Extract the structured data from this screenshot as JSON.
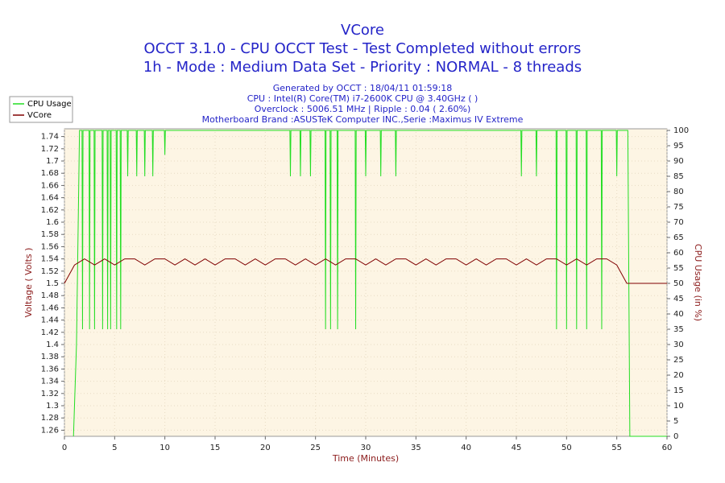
{
  "chart_data": {
    "type": "line",
    "title": [
      "VCore",
      "OCCT 3.1.0 - CPU OCCT Test - Test Completed without errors",
      "1h - Mode : Medium Data Set - Priority : NORMAL - 8 threads"
    ],
    "subtitle": [
      "Generated by OCCT : 18/04/11 01:59:18",
      "CPU : Intel(R) Core(TM) i7-2600K CPU @ 3.40GHz (  )",
      "Overclock : 5006.51 MHz | Ripple : 0.04 ( 2.60%)",
      "Motherboard Brand :ASUSTeK Computer INC.,Serie :Maximus IV Extreme"
    ],
    "xlabel": "Time (Minutes)",
    "ylabel": "Voltage ( Volts )",
    "y2label": "CPU Usage (in %)",
    "xlim": [
      0,
      60
    ],
    "xticks": [
      0,
      5,
      10,
      15,
      20,
      25,
      30,
      35,
      40,
      45,
      50,
      55,
      60
    ],
    "ylim": [
      1.25,
      1.75
    ],
    "yticks": [
      1.26,
      1.28,
      1.3,
      1.32,
      1.34,
      1.36,
      1.38,
      1.4,
      1.42,
      1.44,
      1.46,
      1.48,
      1.5,
      1.52,
      1.54,
      1.56,
      1.58,
      1.6,
      1.62,
      1.64,
      1.66,
      1.68,
      1.7,
      1.72,
      1.74
    ],
    "y2lim": [
      0,
      100
    ],
    "y2ticks": [
      0,
      5,
      10,
      15,
      20,
      25,
      30,
      35,
      40,
      45,
      50,
      55,
      60,
      65,
      70,
      75,
      80,
      85,
      90,
      95,
      100
    ],
    "grid": true,
    "legend": "top-left",
    "series": [
      {
        "name": "CPU Usage",
        "color": "#22dd22",
        "axis": "y2",
        "x": [
          0.9,
          1.2,
          1.5,
          1.75,
          1.8,
          1.85,
          2.45,
          2.5,
          2.55,
          2.95,
          3,
          3.05,
          3.75,
          3.8,
          3.85,
          4.25,
          4.3,
          4.35,
          4.55,
          4.6,
          4.65,
          5.15,
          5.2,
          5.25,
          5.55,
          5.6,
          5.65,
          6.25,
          6.3,
          6.35,
          7.15,
          7.2,
          7.25,
          7.95,
          8,
          8.05,
          8.75,
          8.8,
          8.85,
          9.95,
          10,
          10.05,
          22.45,
          22.5,
          22.55,
          23.45,
          23.5,
          23.55,
          24.45,
          24.5,
          24.55,
          25.95,
          26,
          26.05,
          26.45,
          26.5,
          26.55,
          27.15,
          27.2,
          27.25,
          28.95,
          29,
          29.05,
          29.95,
          30,
          30.05,
          31.45,
          31.5,
          31.55,
          32.95,
          33,
          33.05,
          45.45,
          45.5,
          45.55,
          46.95,
          47,
          47.05,
          48.95,
          49,
          49.05,
          49.95,
          50,
          50.05,
          50.95,
          51,
          51.05,
          51.95,
          52,
          52.05,
          53.45,
          53.5,
          53.55,
          54.95,
          55,
          55.05,
          56.1,
          56.3,
          60
        ],
        "values": [
          0,
          30,
          100,
          100,
          35,
          100,
          100,
          35,
          100,
          100,
          35,
          100,
          100,
          35,
          100,
          100,
          35,
          100,
          100,
          35,
          100,
          100,
          35,
          100,
          100,
          35,
          100,
          100,
          85,
          100,
          100,
          85,
          100,
          100,
          85,
          100,
          100,
          85,
          100,
          100,
          92,
          100,
          100,
          85,
          100,
          100,
          85,
          100,
          100,
          85,
          100,
          100,
          35,
          100,
          100,
          35,
          100,
          100,
          35,
          100,
          100,
          35,
          100,
          100,
          85,
          100,
          100,
          85,
          100,
          100,
          85,
          100,
          100,
          85,
          100,
          100,
          85,
          100,
          100,
          35,
          100,
          100,
          35,
          100,
          100,
          35,
          100,
          100,
          35,
          100,
          100,
          35,
          100,
          100,
          85,
          100,
          100,
          0,
          0
        ]
      },
      {
        "name": "VCore",
        "color": "#800000",
        "axis": "y",
        "x": [
          0,
          1,
          2,
          3,
          4,
          5,
          6,
          7,
          8,
          9,
          10,
          11,
          12,
          13,
          14,
          15,
          16,
          17,
          18,
          19,
          20,
          21,
          22,
          23,
          24,
          25,
          26,
          27,
          28,
          29,
          30,
          31,
          32,
          33,
          34,
          35,
          36,
          37,
          38,
          39,
          40,
          41,
          42,
          43,
          44,
          45,
          46,
          47,
          48,
          49,
          50,
          51,
          52,
          53,
          54,
          55,
          56,
          57,
          58,
          59,
          60
        ],
        "values": [
          1.5,
          1.53,
          1.54,
          1.53,
          1.54,
          1.53,
          1.54,
          1.54,
          1.53,
          1.54,
          1.54,
          1.53,
          1.54,
          1.53,
          1.54,
          1.53,
          1.54,
          1.54,
          1.53,
          1.54,
          1.53,
          1.54,
          1.54,
          1.53,
          1.54,
          1.53,
          1.54,
          1.53,
          1.54,
          1.54,
          1.53,
          1.54,
          1.53,
          1.54,
          1.54,
          1.53,
          1.54,
          1.53,
          1.54,
          1.54,
          1.53,
          1.54,
          1.53,
          1.54,
          1.54,
          1.53,
          1.54,
          1.53,
          1.54,
          1.54,
          1.53,
          1.54,
          1.53,
          1.54,
          1.54,
          1.53,
          1.5,
          1.5,
          1.5,
          1.5,
          1.5
        ]
      }
    ]
  }
}
